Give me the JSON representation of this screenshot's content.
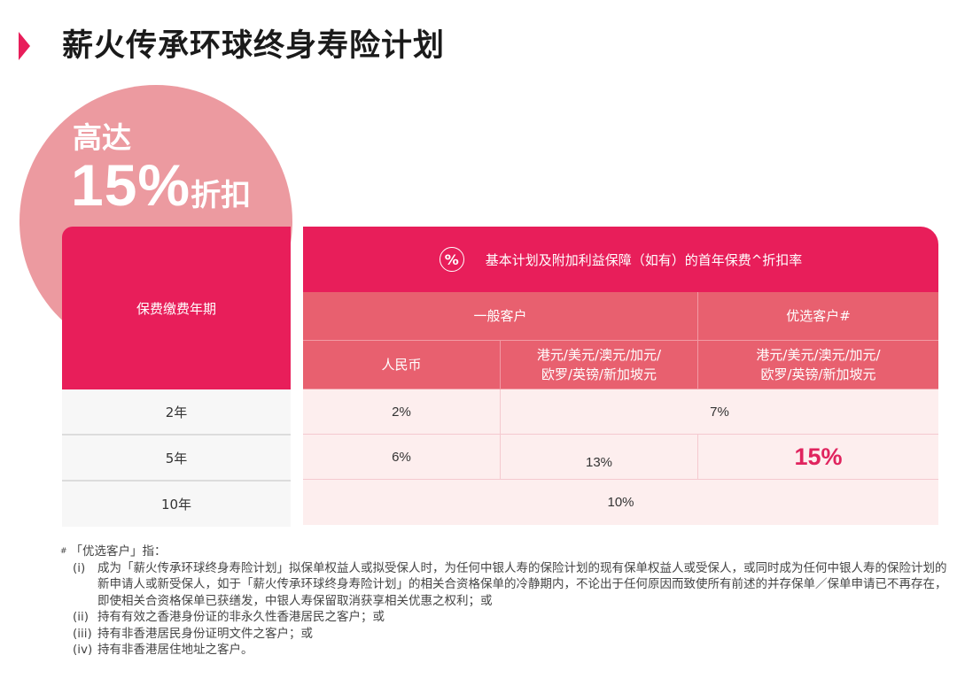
{
  "header": {
    "title": "薪火传承环球终身寿险计划",
    "arrow_icon": "triangle-right-icon"
  },
  "promo": {
    "line1": "高达",
    "percent": "15%",
    "suffix": "折扣"
  },
  "table": {
    "left_header": "保费缴费年期",
    "top_header": "基本计划及附加利益保障（如有）的首年保费^折扣率",
    "top_icon": "percent-circle-icon",
    "groups": [
      "一般客户",
      "优选客户#"
    ],
    "subheaders": [
      "人民币",
      "港元/美元/澳元/加元/\n欧罗/英镑/新加坡元",
      "港元/美元/澳元/加元/\n欧罗/英镑/新加坡元"
    ],
    "rows": [
      {
        "term": "2年",
        "rmb": "2%",
        "merged_other": "7%"
      },
      {
        "term": "5年",
        "rmb": "6%",
        "general_other": "13%",
        "preferred": "15%"
      },
      {
        "term": "10年",
        "merged_all": "10%"
      }
    ]
  },
  "footnotes": {
    "marker": "#",
    "intro": "「优选客户」指：",
    "items": [
      {
        "num": "(i)",
        "text": "成为「薪火传承环球终身寿险计划」拟保单权益人或拟受保人时，为任何中银人寿的保险计划的现有保单权益人或受保人，或同时成为任何中银人寿的保险计划的新申请人或新受保人，如于「薪火传承环球终身寿险计划」的相关合资格保单的冷静期内，不论出于任何原因而致使所有前述的并存保单／保单申请已不再存在，即使相关合资格保单已获缮发，中银人寿保留取消获享相关优惠之权利；或"
      },
      {
        "num": "(ii)",
        "text": "持有有效之香港身份证的非永久性香港居民之客户；或"
      },
      {
        "num": "(iii)",
        "text": "持有非香港居民身份证明文件之客户；或"
      },
      {
        "num": "(iv)",
        "text": "持有非香港居住地址之客户。"
      }
    ]
  },
  "colors": {
    "brand": "#e81e5a",
    "header_light": "#e8606f",
    "circle": "#ec9aa0",
    "cell_bg": "#fdeeee"
  }
}
